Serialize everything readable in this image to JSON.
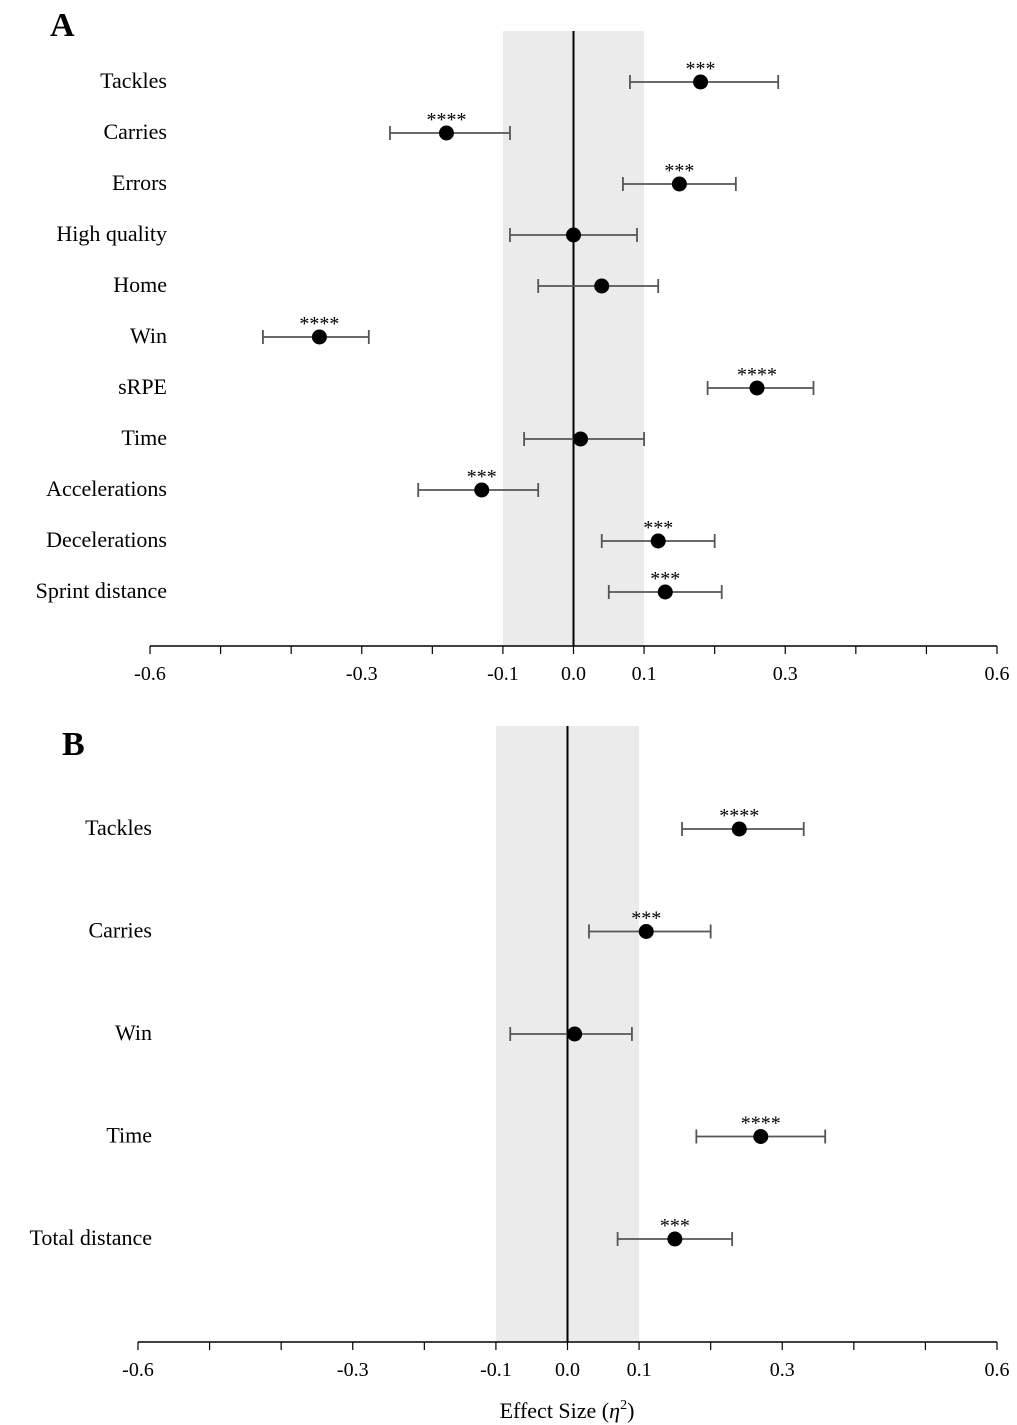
{
  "chart_data": [
    {
      "type": "forest",
      "panel_label": "A",
      "xlim": [
        -0.6,
        0.6
      ],
      "x_ticks": [
        "-0.6",
        "-0.3",
        "-0.1",
        "0.0",
        "0.1",
        "0.3",
        "0.6"
      ],
      "reference_band": [
        -0.1,
        0.1
      ],
      "reference_line": 0.0,
      "categories": [
        "Tackles",
        "Carries",
        "Errors",
        "High quality",
        "Home",
        "Win",
        "sRPE",
        "Time",
        "Accelerations",
        "Decelerations",
        "Sprint distance"
      ],
      "series": [
        {
          "estimate": [
            0.18,
            -0.18,
            0.15,
            0.0,
            0.04,
            -0.36,
            0.26,
            0.01,
            -0.13,
            0.12,
            0.13
          ],
          "ci_low": [
            0.08,
            -0.26,
            0.07,
            -0.09,
            -0.05,
            -0.44,
            0.19,
            -0.07,
            -0.22,
            0.04,
            0.05
          ],
          "ci_high": [
            0.29,
            -0.09,
            0.23,
            0.09,
            0.12,
            -0.29,
            0.34,
            0.1,
            -0.05,
            0.2,
            0.21
          ],
          "significance": [
            "***",
            "****",
            "***",
            "",
            "",
            "****",
            "****",
            "",
            "***",
            "***",
            "***"
          ]
        }
      ],
      "grid": false
    },
    {
      "type": "forest",
      "panel_label": "B",
      "xlim": [
        -0.6,
        0.6
      ],
      "x_ticks": [
        "-0.6",
        "-0.3",
        "-0.1",
        "0.0",
        "0.1",
        "0.3",
        "0.6"
      ],
      "reference_band": [
        -0.1,
        0.1
      ],
      "reference_line": 0.0,
      "categories": [
        "Tackles",
        "Carries",
        "Win",
        "Time",
        "Total distance"
      ],
      "series": [
        {
          "estimate": [
            0.24,
            0.11,
            0.01,
            0.27,
            0.15
          ],
          "ci_low": [
            0.16,
            0.03,
            -0.08,
            0.18,
            0.07
          ],
          "ci_high": [
            0.33,
            0.2,
            0.09,
            0.36,
            0.23
          ],
          "significance": [
            "****",
            "***",
            "",
            "****",
            "***"
          ]
        }
      ],
      "xlabel": "Effect Size (η²)",
      "xlabel_base": "Effect Size (",
      "xlabel_symbol": "η",
      "xlabel_sup": "2",
      "xlabel_close": ")",
      "grid": false
    }
  ]
}
